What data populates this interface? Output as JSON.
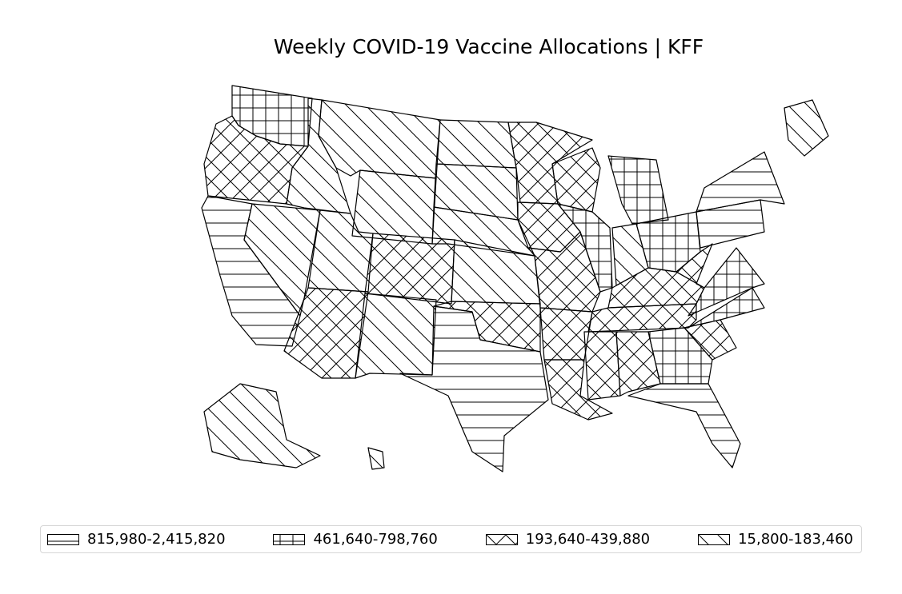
{
  "title": "Weekly COVID-19 Vaccine Allocations | KFF",
  "map": {
    "states": {
      "WA": "461,640-798,760",
      "OR": "193,640-439,880",
      "CA": "815,980-2,415,820",
      "ID": "15,800-183,460",
      "NV": "15,800-183,460",
      "UT": "15,800-183,460",
      "AZ": "193,640-439,880",
      "MT": "15,800-183,460",
      "WY": "15,800-183,460",
      "CO": "193,640-439,880",
      "NM": "15,800-183,460",
      "ND": "15,800-183,460",
      "SD": "15,800-183,460",
      "NE": "15,800-183,460",
      "KS": "15,800-183,460",
      "OK": "193,640-439,880",
      "TX": "815,980-2,415,820",
      "MN": "193,640-439,880",
      "IA": "193,640-439,880",
      "MO": "193,640-439,880",
      "AR": "193,640-439,880",
      "LA": "193,640-439,880",
      "WI": "193,640-439,880",
      "IL": "461,640-798,760",
      "MI": "461,640-798,760",
      "IN": "15,800-183,460",
      "OH": "461,640-798,760",
      "KY": "193,640-439,880",
      "TN": "193,640-439,880",
      "MS": "193,640-439,880",
      "AL": "193,640-439,880",
      "GA": "461,640-798,760",
      "FL": "815,980-2,415,820",
      "SC": "193,640-439,880",
      "NC": "461,640-798,760",
      "VA": "461,640-798,760",
      "WV": "193,640-439,880",
      "PA": "815,980-2,415,820",
      "NY": "815,980-2,415,820",
      "ME": "15,800-183,460",
      "AK": "15,800-183,460",
      "HI": "15,800-183,460"
    }
  },
  "legend": {
    "items": [
      {
        "label": "815,980-2,415,820",
        "hatch": "horizontal"
      },
      {
        "label": "461,640-798,760",
        "hatch": "grid"
      },
      {
        "label": "193,640-439,880",
        "hatch": "crosshatch"
      },
      {
        "label": "15,800-183,460",
        "hatch": "backslash"
      }
    ]
  },
  "colors": {
    "stroke": "#000000",
    "background": "#ffffff",
    "legend_border": "#d6d6d6"
  }
}
